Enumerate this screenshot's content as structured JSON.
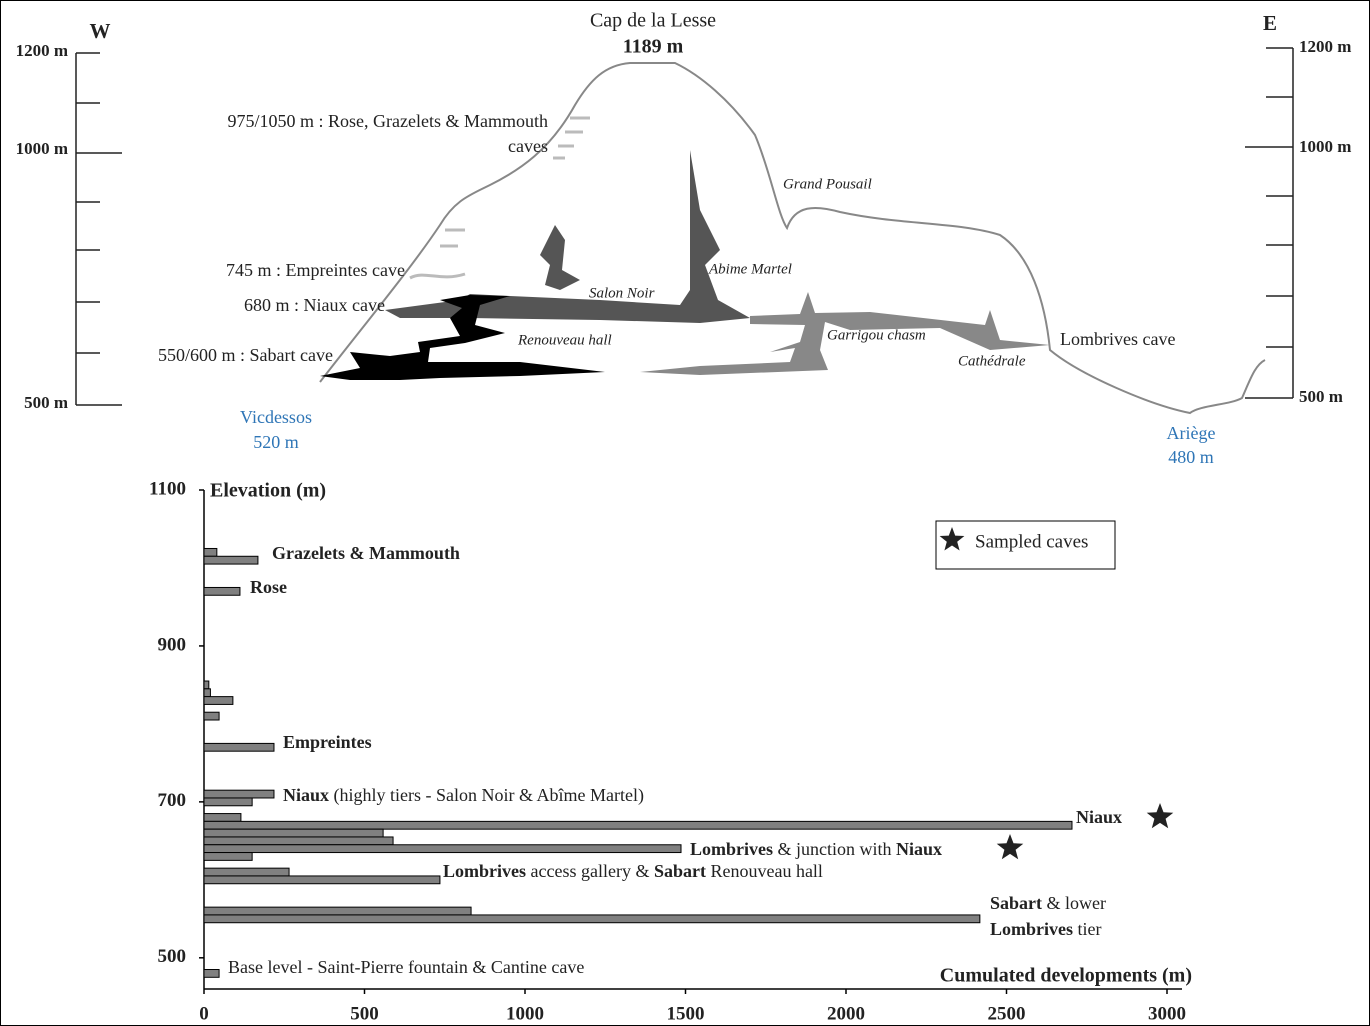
{
  "profile": {
    "west": "W",
    "east": "E",
    "summit": "Cap de la Lesse",
    "summit_elevation": "1189 m",
    "scale_left": [
      "1200 m",
      "1000 m",
      "500 m"
    ],
    "scale_right": [
      "1200 m",
      "1000 m",
      "500 m"
    ],
    "levels": [
      "975/1050 m : Rose, Grazelets & Mammouth",
      "caves",
      "745 m : Empreintes cave",
      "680 m : Niaux cave",
      "550/600 m : Sabart cave"
    ],
    "features": [
      "Grand Pousail",
      "Abime Martel",
      "Salon Noir",
      "Renouveau hall",
      "Garrigou chasm",
      "Cathédrale",
      "Lombrives cave"
    ],
    "rivers": [
      {
        "name": "Vicdessos",
        "elevation": "520 m"
      },
      {
        "name": "Ariège",
        "elevation": "480 m"
      }
    ]
  },
  "chart_data": {
    "type": "barh",
    "y_label": "Elevation (m)",
    "x_label": "Cumulated developments (m)",
    "elevations": [
      1020,
      1010,
      970,
      850,
      840,
      830,
      810,
      770,
      710,
      700,
      680,
      670,
      660,
      650,
      640,
      630,
      610,
      600,
      560,
      550,
      480
    ],
    "values": [
      40,
      168,
      112,
      15,
      20,
      90,
      47,
      218,
      218,
      150,
      115,
      2704,
      558,
      589,
      1486,
      150,
      265,
      735,
      832,
      2417,
      47
    ],
    "color": "#808080",
    "xlim": [
      0,
      3000
    ],
    "xticks": [
      0,
      500,
      1000,
      1500,
      2000,
      2500,
      3000
    ],
    "ylim": [
      460,
      1100
    ],
    "yticks": [
      500,
      700,
      900,
      1100
    ],
    "legend": "Sampled caves",
    "annotations": [
      {
        "parts": [
          {
            "text": "Grazelets & Mammouth",
            "bold": true
          }
        ]
      },
      {
        "parts": [
          {
            "text": "Rose",
            "bold": true
          }
        ]
      },
      {
        "parts": [
          {
            "text": "Empreintes",
            "bold": true
          }
        ]
      },
      {
        "parts": [
          {
            "text": "Niaux",
            "bold": true
          },
          {
            "text": " (highly tiers - Salon Noir & Abîme Martel)",
            "bold": false
          }
        ]
      },
      {
        "parts": [
          {
            "text": "Niaux",
            "bold": true
          }
        ],
        "sampled": true
      },
      {
        "parts": [
          {
            "text": "Lombrives",
            "bold": true
          },
          {
            "text": " & junction with ",
            "bold": false
          },
          {
            "text": "Niaux",
            "bold": true
          }
        ],
        "sampled": true
      },
      {
        "parts": [
          {
            "text": "Lombrives",
            "bold": true
          },
          {
            "text": " access gallery & ",
            "bold": false
          },
          {
            "text": "Sabart",
            "bold": true
          },
          {
            "text": " Renouveau hall",
            "bold": false
          }
        ]
      },
      {
        "parts": [
          {
            "text": "Sabart",
            "bold": true
          },
          {
            "text": " & lower",
            "bold": false
          }
        ]
      },
      {
        "parts": [
          {
            "text": "Lombrives",
            "bold": true
          },
          {
            "text": " tier",
            "bold": false
          }
        ]
      },
      {
        "parts": [
          {
            "text": "Base level - Saint-Pierre fountain & Cantine cave",
            "bold": false
          }
        ]
      }
    ]
  }
}
